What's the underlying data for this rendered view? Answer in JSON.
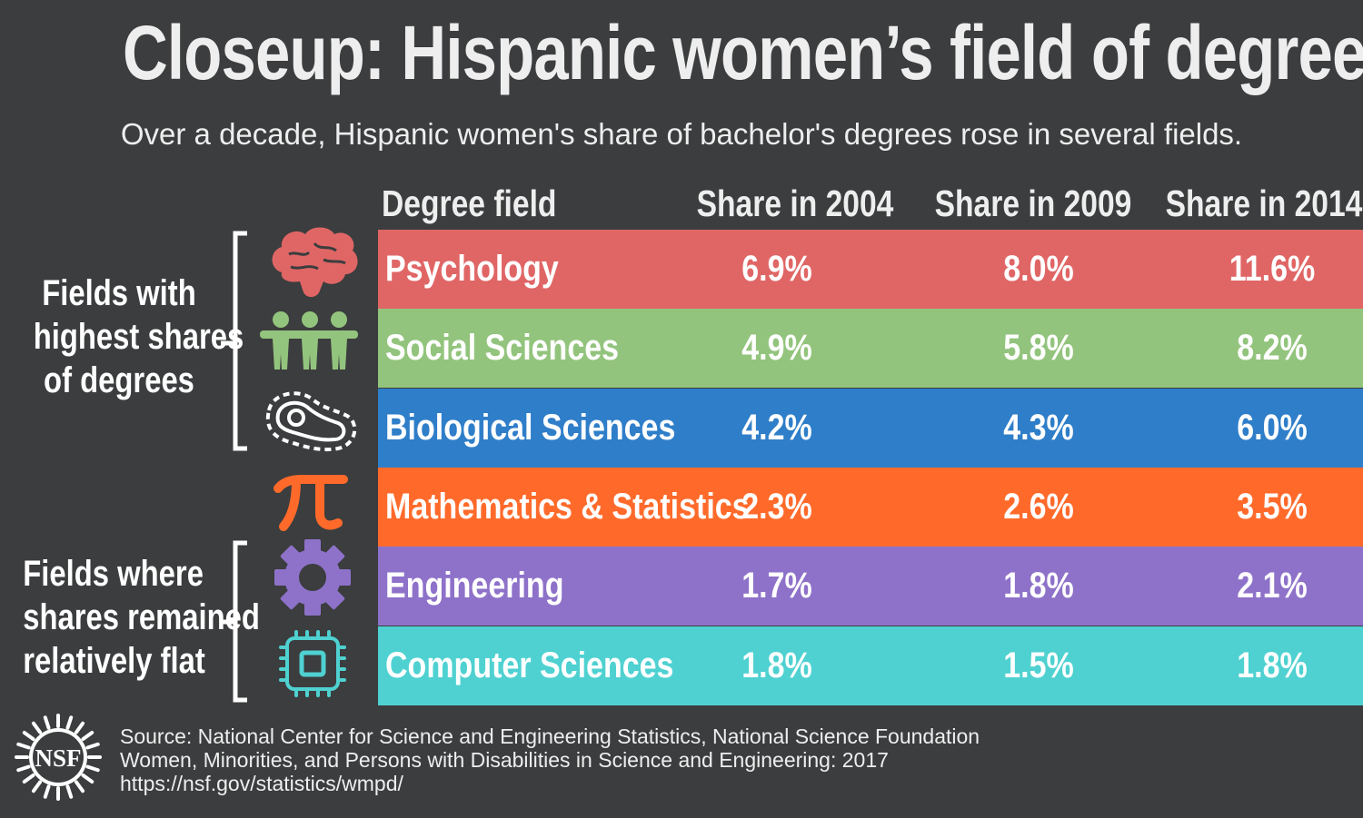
{
  "title": "Closeup: Hispanic women’s field of degree",
  "subtitle": "Over a decade, Hispanic women's share of bachelor's degrees rose in several fields.",
  "groups": {
    "high": [
      "Fields with",
      "highest shares",
      "of degrees"
    ],
    "flat": [
      "Fields where",
      "shares remained",
      "relatively flat"
    ]
  },
  "chart_data": {
    "type": "table",
    "title": "Closeup: Hispanic women’s field of degree",
    "columns": [
      "Degree field",
      "Share in 2004",
      "Share in 2009",
      "Share in 2014"
    ],
    "rows": [
      {
        "field": "Psychology",
        "v2004": "6.9%",
        "v2009": "8.0%",
        "v2014": "11.6%",
        "color": "#e06666",
        "icon": "brain-icon"
      },
      {
        "field": "Social Sciences",
        "v2004": "4.9%",
        "v2009": "5.8%",
        "v2014": "8.2%",
        "color": "#93c47d",
        "icon": "people-icon"
      },
      {
        "field": "Biological Sciences",
        "v2004": "4.2%",
        "v2009": "4.3%",
        "v2014": "6.0%",
        "color": "#2f7ec9",
        "icon": "cell-icon"
      },
      {
        "field": "Mathematics & Statistics",
        "v2004": "2.3%",
        "v2009": "2.6%",
        "v2014": "3.5%",
        "color": "#ff6a2b",
        "icon": "pi-icon"
      },
      {
        "field": "Engineering",
        "v2004": "1.7%",
        "v2009": "1.8%",
        "v2014": "2.1%",
        "color": "#8e72c9",
        "icon": "gear-icon"
      },
      {
        "field": "Computer Sciences",
        "v2004": "1.8%",
        "v2009": "1.5%",
        "v2014": "1.8%",
        "color": "#4fd1d1",
        "icon": "chip-icon"
      }
    ]
  },
  "source": {
    "line1": "Source: National Center for Science and Engineering Statistics, National Science Foundation",
    "line2": "Women, Minorities, and Persons with Disabilities in Science and Engineering: 2017",
    "line3": "https://nsf.gov/statistics/wmpd/",
    "logo_text": "NSF"
  }
}
